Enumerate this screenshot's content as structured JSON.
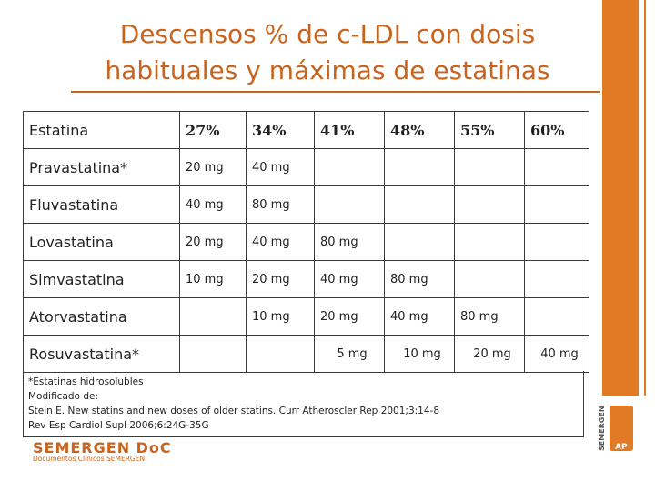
{
  "title": {
    "line1": "Descensos % de c-LDL con dosis",
    "line2": "habituales y máximas de estatinas"
  },
  "table": {
    "header": [
      "Estatina",
      "27%",
      "34%",
      "41%",
      "48%",
      "55%",
      "60%"
    ],
    "rows": [
      [
        "Pravastatina*",
        "20 mg",
        "40 mg",
        "",
        "",
        "",
        ""
      ],
      [
        "Fluvastatina",
        "40 mg",
        "80 mg",
        "",
        "",
        "",
        ""
      ],
      [
        "Lovastatina",
        "20 mg",
        "40 mg",
        "80 mg",
        "",
        "",
        ""
      ],
      [
        "Simvastatina",
        "10 mg",
        "20 mg",
        "40 mg",
        "80 mg",
        "",
        ""
      ],
      [
        "Atorvastatina",
        "",
        "10 mg",
        "20 mg",
        "40 mg",
        "80 mg",
        ""
      ],
      [
        "Rosuvastatina*",
        "",
        "",
        "5 mg",
        "10 mg",
        "20 mg",
        "40 mg"
      ]
    ]
  },
  "notes": {
    "line1": "*Estatinas hidrosolubles",
    "line2": "Modificado de:",
    "line3": "Stein E. New statins and new doses of older statins. Curr Atheroscler Rep 2001;3:14-8",
    "line4": "Rev Esp Cardiol Supl 2006;6:24G-35G"
  },
  "logo": {
    "main": "SEMERGEN DoC",
    "sub": "Documentos Clínicos SEMERGEN",
    "vertical": "SEMERGEN",
    "ap": "AP"
  },
  "colors": {
    "accent": "#c8641e",
    "bar": "#e07a25"
  }
}
